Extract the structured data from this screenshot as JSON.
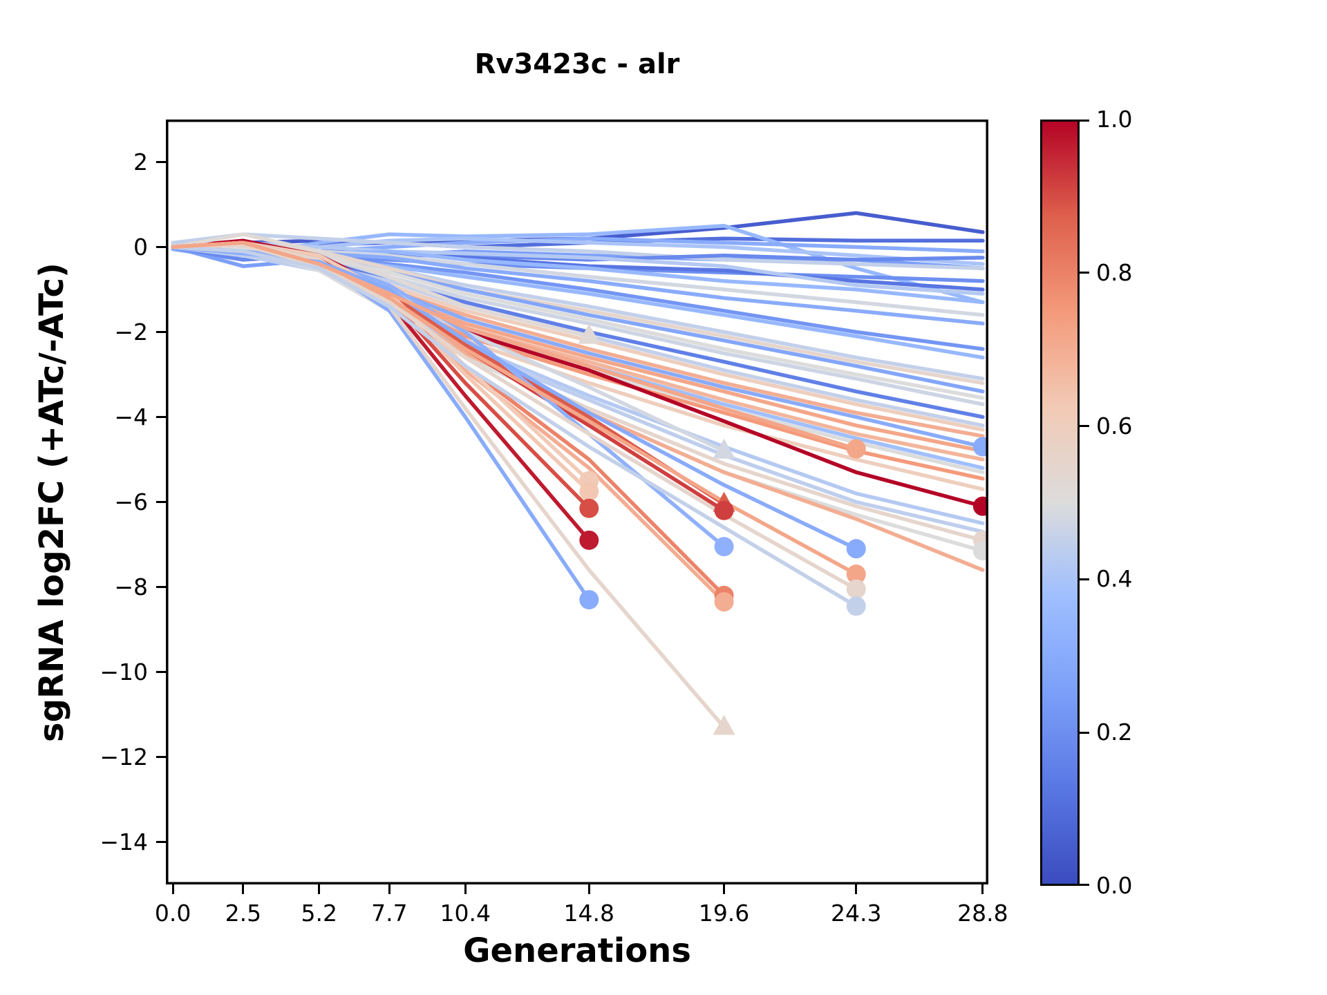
{
  "figure": {
    "background": "#ffffff"
  },
  "chart_data": {
    "type": "line",
    "title": "Rv3423c - alr",
    "xlabel": "Generations",
    "ylabel": "sgRNA log2FC (+ATc/-ATc)",
    "x": [
      0.0,
      2.5,
      5.2,
      7.7,
      10.4,
      14.8,
      19.6,
      24.3,
      28.8
    ],
    "x_tick_labels": [
      "0.0",
      "2.5",
      "5.2",
      "7.7",
      "10.4",
      "14.8",
      "19.6",
      "24.3",
      "28.8"
    ],
    "y_ticks": [
      2,
      0,
      -2,
      -4,
      -6,
      -8,
      -10,
      -12,
      -14
    ],
    "y_tick_labels": [
      "2",
      "0",
      "−2",
      "−4",
      "−6",
      "−8",
      "−10",
      "−12",
      "−14"
    ],
    "xlim": [
      -0.25,
      29.0
    ],
    "ylim": [
      -15,
      3
    ],
    "grid": false,
    "legend": "none",
    "line_width": 5.5,
    "colorbar": {
      "min": 0.0,
      "max": 1.0,
      "tick_values": [
        1.0,
        0.8,
        0.6,
        0.4,
        0.2,
        0.0
      ],
      "tick_labels": [
        "1.0",
        "0.8",
        "0.6",
        "0.4",
        "0.2",
        "0.0"
      ],
      "colormap": "coolwarm"
    },
    "colormap_stops": [
      [
        0.0,
        "#3b4cc0"
      ],
      [
        0.125,
        "#5977e3"
      ],
      [
        0.25,
        "#7b9ff9"
      ],
      [
        0.375,
        "#9ebeff"
      ],
      [
        0.5,
        "#dcdcdc"
      ],
      [
        0.625,
        "#f2cab5"
      ],
      [
        0.75,
        "#f49a7b"
      ],
      [
        0.875,
        "#de604d"
      ],
      [
        1.0,
        "#b40426"
      ]
    ],
    "series": [
      {
        "c": 0.05,
        "y": [
          0.05,
          0.1,
          0.15,
          0.1,
          0.15,
          0.2,
          0.45,
          0.8,
          0.35
        ],
        "marker": null
      },
      {
        "c": 0.1,
        "y": [
          0,
          -0.1,
          0.05,
          0.1,
          0,
          0.1,
          0.2,
          0.15,
          0.15
        ],
        "marker": null
      },
      {
        "c": 0.35,
        "y": [
          0,
          -0.2,
          0.1,
          0.3,
          0.25,
          0.3,
          0.5,
          -0.5,
          -1.3
        ],
        "marker": null
      },
      {
        "c": 0.3,
        "y": [
          -0.05,
          -0.3,
          -0.1,
          0,
          0.1,
          0.2,
          0.1,
          0,
          -0.1
        ],
        "marker": null
      },
      {
        "c": 0.4,
        "y": [
          0,
          -0.1,
          0,
          0.15,
          0.2,
          0.1,
          0,
          -0.2,
          -0.4
        ],
        "marker": null
      },
      {
        "c": 0.25,
        "y": [
          0,
          -0.45,
          -0.3,
          -0.2,
          -0.1,
          -0.2,
          -0.3,
          -0.3,
          -0.5
        ],
        "marker": null
      },
      {
        "c": 0.45,
        "y": [
          0.1,
          0.3,
          0.2,
          0.1,
          0,
          -0.1,
          -0.3,
          -0.4,
          -0.5
        ],
        "marker": null
      },
      {
        "c": 0.2,
        "y": [
          0,
          -0.1,
          -0.2,
          -0.3,
          -0.4,
          -0.5,
          -0.6,
          -0.7,
          -0.8
        ],
        "marker": null
      },
      {
        "c": 0.18,
        "y": [
          0,
          -0.3,
          -0.2,
          -0.1,
          -0.2,
          -0.3,
          -0.2,
          -0.3,
          -0.25
        ],
        "marker": null
      },
      {
        "c": 0.12,
        "y": [
          0,
          -0.2,
          -0.1,
          -0.15,
          -0.25,
          -0.45,
          -0.55,
          -0.8,
          -1.0
        ],
        "marker": null
      },
      {
        "c": 0.42,
        "y": [
          0.05,
          0.1,
          0,
          -0.1,
          -0.15,
          -0.25,
          -0.45,
          -0.9,
          -1.1
        ],
        "marker": null
      },
      {
        "c": 0.35,
        "y": [
          0,
          -0.2,
          -0.15,
          -0.1,
          -0.3,
          -0.5,
          -0.8,
          -1.0,
          -1.3
        ],
        "marker": null
      },
      {
        "c": 0.48,
        "y": [
          0,
          0.05,
          -0.1,
          -0.2,
          -0.4,
          -0.7,
          -1.0,
          -1.3,
          -1.6
        ],
        "marker": null
      },
      {
        "c": 0.3,
        "y": [
          0,
          -0.1,
          -0.15,
          -0.25,
          -0.5,
          -0.8,
          -1.2,
          -1.5,
          -1.8
        ],
        "marker": null
      },
      {
        "c": 0.22,
        "y": [
          0,
          -0.15,
          -0.2,
          -0.4,
          -0.6,
          -1.0,
          -1.5,
          -2.0,
          -2.4
        ],
        "marker": null
      },
      {
        "c": 0.35,
        "y": [
          0,
          -0.1,
          -0.25,
          -0.45,
          -0.7,
          -1.1,
          -1.6,
          -2.1,
          -2.6
        ],
        "marker": null
      },
      {
        "c": 0.45,
        "y": [
          0,
          -0.05,
          -0.2,
          -0.5,
          -0.9,
          -1.4,
          -2.0,
          -2.6,
          -3.1
        ],
        "marker": null
      },
      {
        "c": 0.55,
        "y": [
          0,
          0.1,
          -0.1,
          -0.5,
          -1.0,
          -1.5,
          -2.1,
          -2.7,
          -3.2
        ],
        "marker": null
      },
      {
        "c": 0.28,
        "y": [
          0,
          -0.2,
          -0.3,
          -0.6,
          -1.0,
          -1.6,
          -2.2,
          -2.8,
          -3.4
        ],
        "marker": null
      },
      {
        "c": 0.5,
        "y": [
          0,
          0,
          -0.25,
          -0.6,
          -1.1,
          -1.7,
          -2.4,
          -3.0,
          -3.55
        ],
        "marker": null
      },
      {
        "c": 0.47,
        "y": [
          0.05,
          -0.1,
          -0.3,
          -0.7,
          -1.2,
          -1.8,
          -2.5,
          -3.1,
          -3.7
        ],
        "marker": null
      },
      {
        "c": 0.15,
        "y": [
          0,
          -0.1,
          -0.3,
          -0.8,
          -1.3,
          -2.0,
          -2.7,
          -3.4,
          -4.0
        ],
        "marker": null
      },
      {
        "c": 0.45,
        "y": [
          0,
          -0.15,
          -0.4,
          -0.8,
          -1.4,
          -2.1,
          -2.9,
          -3.6,
          -4.2
        ],
        "marker": null
      },
      {
        "c": 0.6,
        "y": [
          0,
          0.1,
          -0.3,
          -0.9,
          -1.5,
          -2.2,
          -3.0,
          -3.7,
          -4.3
        ],
        "marker": null
      },
      {
        "c": 0.7,
        "y": [
          0,
          0.05,
          -0.35,
          -1.0,
          -1.6,
          -2.4,
          -3.2,
          -3.9,
          -4.45
        ],
        "marker": null
      },
      {
        "c": 0.3,
        "y": [
          0,
          -0.1,
          -0.4,
          -1.0,
          -1.7,
          -2.5,
          -3.3,
          -4.0,
          -4.7
        ],
        "marker": "circle"
      },
      {
        "c": 0.72,
        "y": [
          0,
          0.1,
          -0.4,
          -1.1,
          -1.8,
          -2.6,
          -3.4,
          -4.2,
          -4.8
        ],
        "marker": null
      },
      {
        "c": 0.68,
        "y": [
          0,
          0.05,
          -0.45,
          -1.2,
          -1.9,
          -2.7,
          -3.6,
          -4.4,
          -5.0
        ],
        "marker": null
      },
      {
        "c": 0.38,
        "y": [
          0,
          -0.2,
          -0.5,
          -1.1,
          -1.9,
          -2.8,
          -3.7,
          -4.5,
          -5.2
        ],
        "marker": null
      },
      {
        "c": 0.5,
        "y": [
          0,
          -0.1,
          -0.5,
          -1.2,
          -2.0,
          -2.9,
          -3.8,
          -4.6,
          -5.3
        ],
        "marker": null
      },
      {
        "c": 0.75,
        "y": [
          0,
          0.1,
          -0.5,
          -1.2,
          -2.1,
          -3.0,
          -3.9,
          -4.8,
          -5.45
        ],
        "marker": null
      },
      {
        "c": 0.6,
        "y": [
          0,
          0,
          -0.5,
          -1.3,
          -2.2,
          -3.2,
          -4.2,
          -5.0,
          -5.7
        ],
        "marker": null
      },
      {
        "c": 1.0,
        "y": [
          0,
          0.15,
          -0.2,
          -1.0,
          -2.0,
          -2.9,
          -4.1,
          -5.3,
          -6.1
        ],
        "marker": "circle"
      },
      {
        "c": 0.42,
        "y": [
          0,
          -0.15,
          -0.5,
          -1.3,
          -2.3,
          -3.5,
          -4.7,
          -5.8,
          -6.5
        ],
        "marker": null
      },
      {
        "c": 0.44,
        "y": [
          0,
          -0.2,
          -0.55,
          -1.4,
          -2.4,
          -3.6,
          -4.9,
          -6.0,
          -6.7
        ],
        "marker": null
      },
      {
        "c": 0.55,
        "y": [
          0,
          0.05,
          -0.5,
          -1.4,
          -2.5,
          -3.8,
          -5.1,
          -6.1,
          -6.9
        ],
        "marker": "circle"
      },
      {
        "c": 0.5,
        "y": [
          0,
          -0.05,
          -0.55,
          -1.5,
          -2.6,
          -3.9,
          -5.3,
          -6.3,
          -7.15
        ],
        "marker": "circle"
      },
      {
        "c": 0.7,
        "y": [
          0,
          0.1,
          -0.5,
          -1.4,
          -2.5,
          -3.9,
          -5.3,
          -6.4,
          -7.6
        ],
        "marker": null
      },
      {
        "c": 0.52,
        "y": [
          0,
          0.3,
          -0.1,
          -0.7,
          -1.4,
          -2.1
        ],
        "marker": "triangle"
      },
      {
        "c": 0.48,
        "y": [
          0,
          0.1,
          -0.3,
          -1.0,
          -2.0,
          -3.3,
          -4.8
        ],
        "marker": "triangle"
      },
      {
        "c": 0.88,
        "y": [
          0,
          0.1,
          -0.3,
          -1.1,
          -2.3,
          -4.0,
          -6.05
        ],
        "marker": "triangle"
      },
      {
        "c": 0.92,
        "y": [
          0,
          0.05,
          -0.35,
          -1.2,
          -2.4,
          -4.2,
          -6.2
        ],
        "marker": "circle"
      },
      {
        "c": 0.8,
        "y": [
          0,
          0.1,
          -0.4,
          -1.3,
          -2.8,
          -5.0,
          -8.2
        ],
        "marker": "circle"
      },
      {
        "c": 0.7,
        "y": [
          0,
          0.05,
          -0.45,
          -1.3,
          -2.9,
          -5.2,
          -8.35
        ],
        "marker": "circle"
      },
      {
        "c": 0.32,
        "y": [
          0,
          -0.1,
          -0.3,
          -0.9,
          -2.0,
          -4.4,
          -7.05
        ],
        "marker": "circle"
      },
      {
        "c": 0.62,
        "y": [
          0,
          0.1,
          -0.2,
          -1.1,
          -2.8,
          -5.5
        ],
        "marker": "circle"
      },
      {
        "c": 0.63,
        "y": [
          0,
          0.05,
          -0.25,
          -1.2,
          -3.0,
          -5.75
        ],
        "marker": "circle"
      },
      {
        "c": 0.9,
        "y": [
          0,
          0.1,
          -0.3,
          -1.2,
          -3.2,
          -6.15
        ],
        "marker": "circle"
      },
      {
        "c": 0.97,
        "y": [
          0,
          0.1,
          -0.35,
          -1.3,
          -3.5,
          -6.9
        ],
        "marker": "circle"
      },
      {
        "c": 0.3,
        "y": [
          0,
          -0.1,
          -0.4,
          -1.5,
          -4.0,
          -8.3
        ],
        "marker": "circle"
      },
      {
        "c": 0.55,
        "y": [
          0,
          0.1,
          -0.3,
          -1.4,
          -3.8,
          -7.6,
          -11.3
        ],
        "marker": "triangle"
      },
      {
        "c": 0.3,
        "y": [
          0,
          -0.15,
          -0.35,
          -1.0,
          -2.2,
          -3.9,
          -5.6,
          -7.1
        ],
        "marker": "circle"
      },
      {
        "c": 0.72,
        "y": [
          0,
          0.1,
          -0.4,
          -1.2,
          -2.4,
          -4.1,
          -6.0,
          -7.7
        ],
        "marker": "circle"
      },
      {
        "c": 0.55,
        "y": [
          0,
          0.05,
          -0.45,
          -1.3,
          -2.6,
          -4.4,
          -6.3,
          -8.05
        ],
        "marker": "circle"
      },
      {
        "c": 0.45,
        "y": [
          0,
          -0.1,
          -0.5,
          -1.4,
          -2.8,
          -4.7,
          -6.6,
          -8.45
        ],
        "marker": "circle"
      },
      {
        "c": 0.72,
        "y": [
          0,
          0.1,
          -0.4,
          -1.1,
          -1.9,
          -2.8,
          -3.8,
          -4.75
        ],
        "marker": "circle"
      }
    ]
  }
}
